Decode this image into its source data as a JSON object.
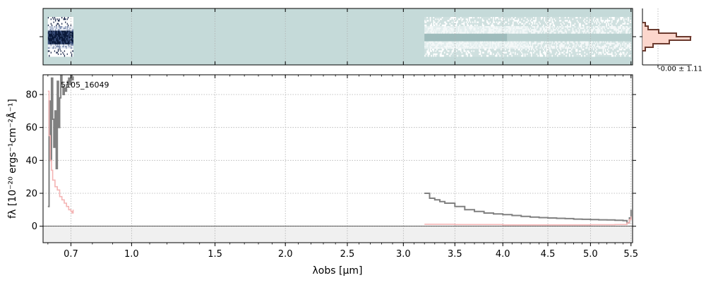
{
  "colors": {
    "background": "#ffffff",
    "flux": "#808080",
    "error": "#f4b4b4",
    "hist_fill": "#fcd6cc",
    "hist_line": "#6b3a2e",
    "spec2d_bg": "#c5dad9",
    "grid": "#b0b0b0",
    "zero_band": "#f0f0f0"
  },
  "chart_data": [
    {
      "type": "line",
      "panel": "main",
      "object_label": "5105_16049",
      "xlabel": "λobs [μm]",
      "ylabel": "fλ [10⁻²⁰ ergs⁻¹cm⁻²Å⁻¹]",
      "xlim": [
        0.58,
        5.52
      ],
      "x_scale": "sqrt-like (non-linear)",
      "ylim": [
        -10,
        92
      ],
      "grid": true,
      "xticks": [
        "0.7",
        "1.0",
        "1.5",
        "2.0",
        "2.5",
        "3.0",
        "3.5",
        "4.0",
        "4.5",
        "5.0",
        "5.5"
      ],
      "yticks": [
        "0",
        "20",
        "40",
        "60",
        "80"
      ],
      "series": [
        {
          "role": "flux",
          "x": [
            0.6,
            0.605,
            0.61,
            0.615,
            0.62,
            0.625,
            0.63,
            0.635,
            0.64,
            0.645,
            0.65,
            0.655,
            0.66,
            0.665,
            0.67,
            0.675,
            0.68,
            0.685,
            0.69,
            0.695,
            0.7,
            0.705,
            0.71,
            3.2,
            3.25,
            3.3,
            3.35,
            3.4,
            3.5,
            3.6,
            3.7,
            3.8,
            3.9,
            4.0,
            4.1,
            4.2,
            4.3,
            4.4,
            4.5,
            4.6,
            4.7,
            4.8,
            4.9,
            5.0,
            5.1,
            5.2,
            5.3,
            5.4,
            5.45,
            5.48,
            5.5
          ],
          "y": [
            12,
            76,
            40,
            90,
            65,
            48,
            70,
            35,
            88,
            60,
            78,
            92,
            85,
            80,
            84,
            82,
            86,
            88,
            90,
            86,
            92,
            89,
            91,
            20,
            17,
            16,
            15,
            14,
            12,
            10,
            9,
            8,
            7.5,
            7,
            6.5,
            6,
            5.5,
            5.2,
            5,
            4.8,
            4.6,
            4.3,
            4.2,
            4,
            3.9,
            3.8,
            3.6,
            3.4,
            2,
            5,
            10
          ]
        },
        {
          "role": "error",
          "x": [
            0.6,
            0.605,
            0.61,
            0.615,
            0.62,
            0.63,
            0.64,
            0.65,
            0.66,
            0.67,
            0.68,
            0.69,
            0.7,
            0.705,
            0.71,
            3.2,
            3.5,
            4.0,
            4.5,
            5.0,
            5.3,
            5.45,
            5.48,
            5.5
          ],
          "y": [
            82,
            55,
            40,
            34,
            28,
            24,
            22,
            18,
            16,
            14,
            12,
            10,
            9,
            8,
            10,
            1.2,
            1.0,
            0.8,
            0.8,
            0.9,
            1.0,
            2.0,
            4.0,
            6.0
          ]
        }
      ]
    },
    {
      "type": "heatmap",
      "panel": "spectrum-2d",
      "xlim": [
        0.58,
        5.52
      ],
      "bands": [
        {
          "start": 0.6,
          "end": 0.71
        },
        {
          "start": 3.2,
          "end": 5.5
        }
      ]
    },
    {
      "type": "bar",
      "panel": "pixel-histogram",
      "annotation": "-0.00 ± 1.11",
      "series": [
        {
          "role": "histogram",
          "values": [
            0.4,
            0.8,
            2.3,
            4.8,
            6.8,
            3.8,
            1.5,
            0.4
          ]
        }
      ]
    }
  ]
}
